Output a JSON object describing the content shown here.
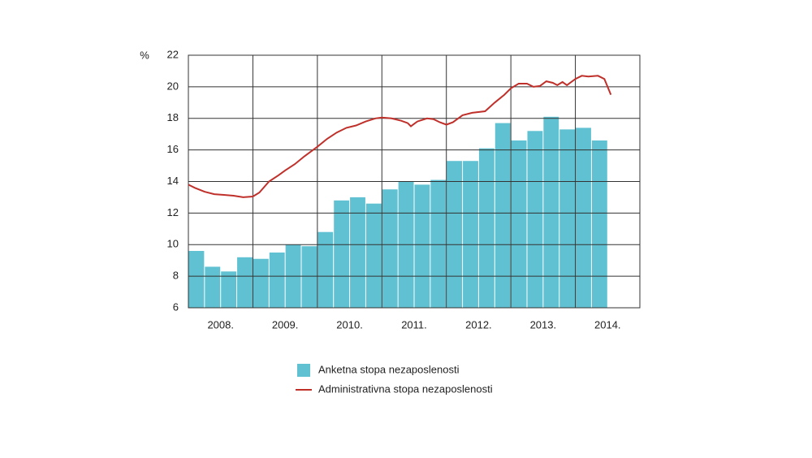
{
  "chart_data": {
    "type": "bar-line",
    "y_unit": "%",
    "xlim": [
      2008,
      2015
    ],
    "xticks": [
      {
        "value": 2008.5,
        "label": "2008."
      },
      {
        "value": 2009.5,
        "label": "2009."
      },
      {
        "value": 2010.5,
        "label": "2010."
      },
      {
        "value": 2011.5,
        "label": "2011."
      },
      {
        "value": 2012.5,
        "label": "2012."
      },
      {
        "value": 2013.5,
        "label": "2013."
      },
      {
        "value": 2014.5,
        "label": "2014."
      }
    ],
    "xgrid": [
      2009,
      2010,
      2011,
      2012,
      2013,
      2014
    ],
    "ylim": [
      6,
      22
    ],
    "yticks": [
      6,
      8,
      10,
      12,
      14,
      16,
      18,
      20,
      22
    ],
    "grid": true,
    "series": [
      {
        "name": "Anketna stopa nezaposlenosti",
        "type": "bar",
        "color": "#5fc1d1",
        "x": [
          2008.125,
          2008.375,
          2008.625,
          2008.875,
          2009.125,
          2009.375,
          2009.625,
          2009.875,
          2010.125,
          2010.375,
          2010.625,
          2010.875,
          2011.125,
          2011.375,
          2011.625,
          2011.875,
          2012.125,
          2012.375,
          2012.625,
          2012.875,
          2013.125,
          2013.375,
          2013.625,
          2013.875,
          2014.125,
          2014.375
        ],
        "values": [
          9.6,
          8.6,
          8.3,
          9.2,
          9.1,
          9.5,
          10.0,
          9.9,
          10.8,
          12.8,
          13.0,
          12.6,
          13.5,
          14.0,
          13.8,
          14.1,
          15.3,
          15.3,
          16.1,
          17.7,
          16.6,
          17.2,
          18.1,
          17.3,
          17.4,
          16.6
        ]
      },
      {
        "name": "Administrativna stopa nezaposlenosti",
        "type": "line",
        "color": "#c0302a",
        "x": [
          2008.0,
          2008.1,
          2008.25,
          2008.4,
          2008.55,
          2008.7,
          2008.85,
          2009.0,
          2009.1,
          2009.25,
          2009.4,
          2009.5,
          2009.65,
          2009.8,
          2010.0,
          2010.15,
          2010.3,
          2010.45,
          2010.6,
          2010.75,
          2010.9,
          2011.0,
          2011.15,
          2011.3,
          2011.4,
          2011.45,
          2011.55,
          2011.7,
          2011.8,
          2011.9,
          2012.0,
          2012.1,
          2012.25,
          2012.4,
          2012.6,
          2012.75,
          2012.9,
          2013.0,
          2013.12,
          2013.25,
          2013.35,
          2013.45,
          2013.55,
          2013.65,
          2013.72,
          2013.8,
          2013.87,
          2014.0,
          2014.1,
          2014.2,
          2014.35,
          2014.45,
          2014.55
        ],
        "values": [
          13.8,
          13.6,
          13.35,
          13.2,
          13.15,
          13.1,
          13.0,
          13.05,
          13.3,
          14.0,
          14.4,
          14.7,
          15.1,
          15.6,
          16.2,
          16.7,
          17.1,
          17.4,
          17.55,
          17.8,
          18.0,
          18.05,
          18.0,
          17.85,
          17.7,
          17.5,
          17.8,
          18.0,
          17.95,
          17.75,
          17.6,
          17.75,
          18.2,
          18.35,
          18.45,
          19.0,
          19.5,
          19.9,
          20.2,
          20.2,
          20.0,
          20.05,
          20.35,
          20.25,
          20.1,
          20.3,
          20.1,
          20.5,
          20.7,
          20.65,
          20.7,
          20.5,
          19.5
        ]
      }
    ]
  }
}
